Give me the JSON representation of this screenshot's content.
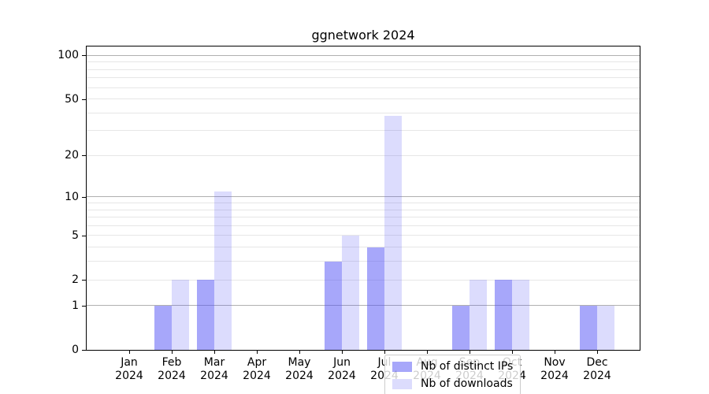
{
  "chart_data": {
    "type": "bar",
    "title": "ggnetwork 2024",
    "categories": [
      "Jan",
      "Feb",
      "Mar",
      "Apr",
      "May",
      "Jun",
      "Jul",
      "Aug",
      "Sep",
      "Oct",
      "Nov",
      "Dec"
    ],
    "category_year": "2024",
    "series": [
      {
        "name": "Nb of distinct IPs",
        "color": "rgba(80,80,245,0.5)",
        "values": [
          0,
          1,
          2,
          0,
          0,
          3,
          4,
          0,
          1,
          2,
          0,
          1
        ]
      },
      {
        "name": "Nb of downloads",
        "color": "rgba(80,80,245,0.2)",
        "values": [
          0,
          2,
          11,
          0,
          0,
          5,
          38,
          0,
          2,
          2,
          0,
          1
        ]
      }
    ],
    "yscale": "log1p",
    "ylim": [
      0,
      115
    ],
    "y_ticks": [
      0,
      1,
      2,
      5,
      10,
      20,
      50,
      100
    ],
    "y_tick_labels": [
      "0",
      "1",
      "2",
      "5",
      "10",
      "20",
      "50",
      "100"
    ],
    "grid": {
      "major_values": [
        1,
        10,
        100
      ],
      "minor_values": [
        2,
        3,
        4,
        5,
        6,
        7,
        8,
        9,
        20,
        30,
        40,
        50,
        60,
        70,
        80,
        90
      ],
      "major_color": "#b0b0b0",
      "minor_color": "#e6e6e6"
    },
    "legend": {
      "position": "lower center, inside plot"
    },
    "colors": {
      "background": "#ffffff",
      "spine": "#000000",
      "text": "#000000"
    }
  }
}
